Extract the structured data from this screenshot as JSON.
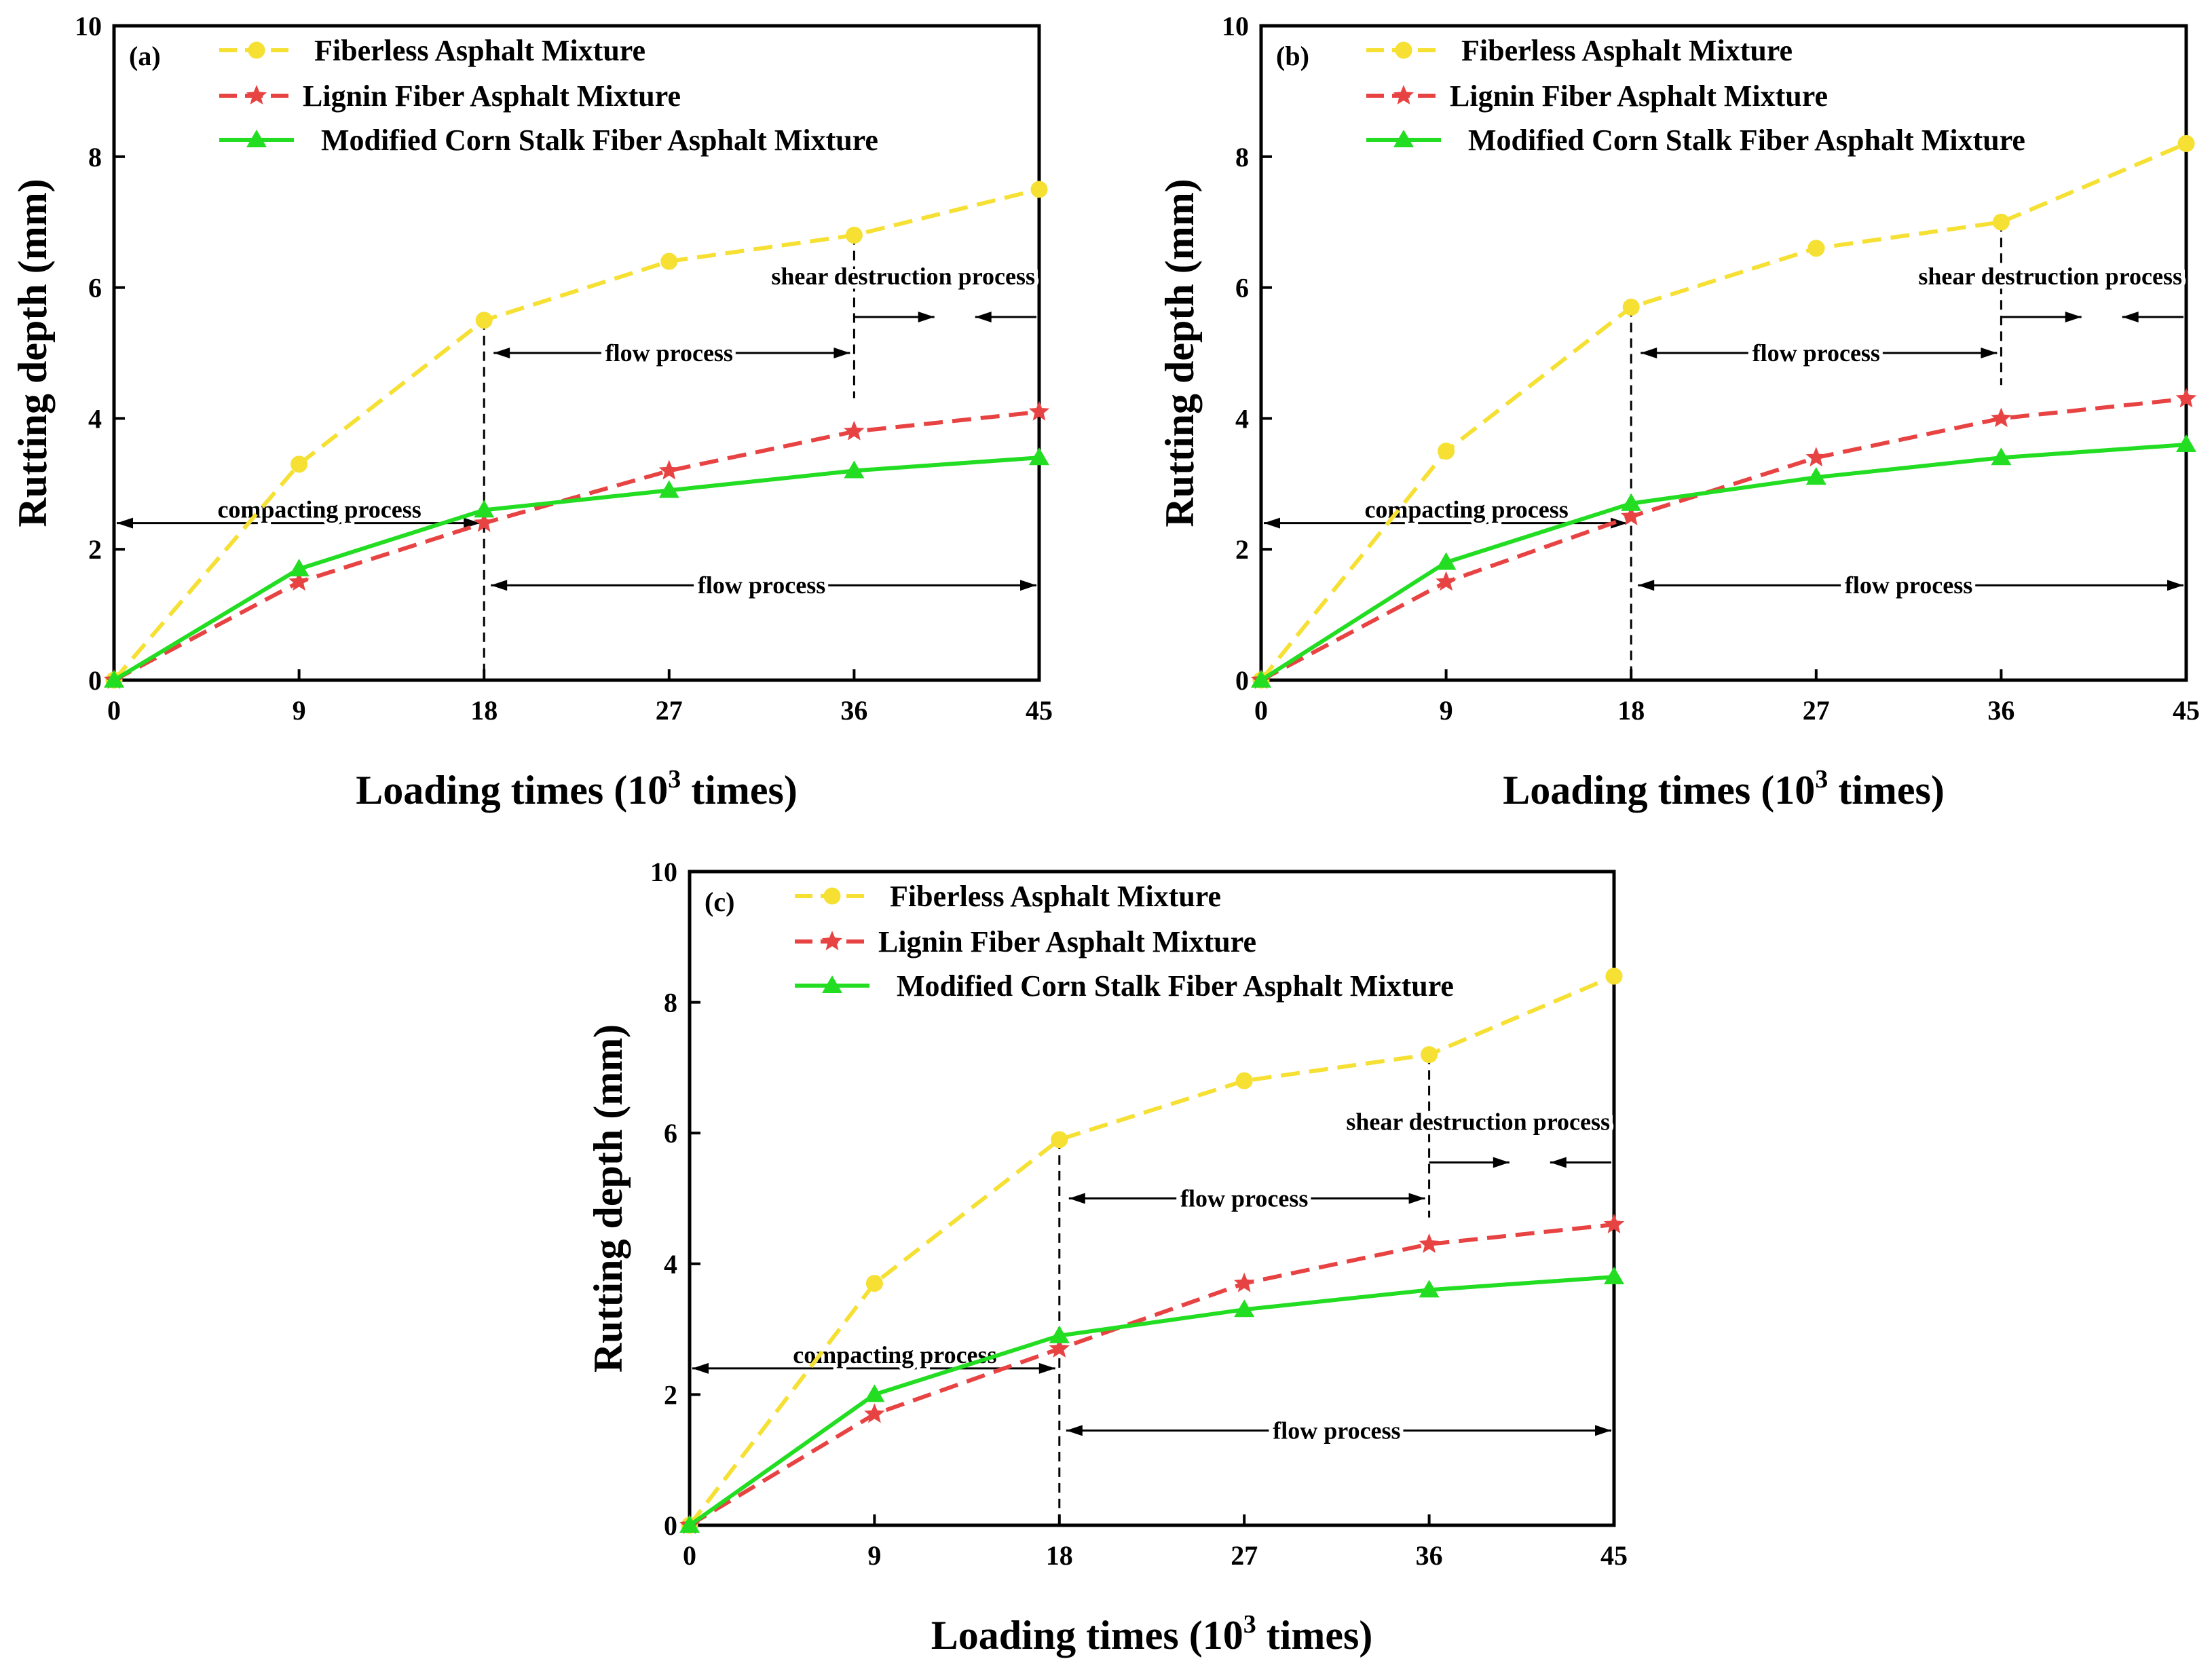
{
  "chart_data": [
    {
      "type": "line",
      "panel_label": "(a)",
      "title": "",
      "xlabel_main": "Loading times (10",
      "xlabel_sup": "3",
      "xlabel_tail": " times)",
      "ylabel": "Rutting depth (mm)",
      "x": [
        0,
        9,
        18,
        27,
        36,
        45
      ],
      "xticks": [
        "0",
        "9",
        "18",
        "27",
        "36",
        "45"
      ],
      "yticks": [
        "0",
        "2",
        "4",
        "6",
        "8",
        "10"
      ],
      "xlim": [
        0,
        45
      ],
      "ylim": [
        0,
        10
      ],
      "legend_position": "top-left",
      "series": [
        {
          "name": "Fiberless Asphalt Mixture",
          "marker": "circle",
          "dash": "dashed",
          "color": "#f5e033",
          "values": [
            0,
            3.3,
            5.5,
            6.4,
            6.8,
            7.5
          ]
        },
        {
          "name": "Lignin Fiber Asphalt Mixture",
          "marker": "star",
          "dash": "dashed",
          "color": "#e84343",
          "values": [
            0,
            1.5,
            2.4,
            3.2,
            3.8,
            4.1
          ]
        },
        {
          "name": "Modified Corn Stalk Fiber Asphalt Mixture",
          "marker": "triangle",
          "dash": "solid",
          "color": "#22dd22",
          "values": [
            0,
            1.7,
            2.6,
            2.9,
            3.2,
            3.4
          ]
        }
      ],
      "annotations": {
        "compacting": "compacting process",
        "flow_upper": "flow process",
        "flow_lower": "flow process",
        "shear": "shear destruction process"
      }
    },
    {
      "type": "line",
      "panel_label": "(b)",
      "title": "",
      "xlabel_main": "Loading times (10",
      "xlabel_sup": "3",
      "xlabel_tail": " times)",
      "ylabel": "Rutting depth (mm)",
      "x": [
        0,
        9,
        18,
        27,
        36,
        45
      ],
      "xticks": [
        "0",
        "9",
        "18",
        "27",
        "36",
        "45"
      ],
      "yticks": [
        "0",
        "2",
        "4",
        "6",
        "8",
        "10"
      ],
      "xlim": [
        0,
        45
      ],
      "ylim": [
        0,
        10
      ],
      "legend_position": "top-left",
      "series": [
        {
          "name": "Fiberless Asphalt Mixture",
          "marker": "circle",
          "dash": "dashed",
          "color": "#f5e033",
          "values": [
            0,
            3.5,
            5.7,
            6.6,
            7.0,
            8.2
          ]
        },
        {
          "name": "Lignin Fiber Asphalt Mixture",
          "marker": "star",
          "dash": "dashed",
          "color": "#e84343",
          "values": [
            0,
            1.5,
            2.5,
            3.4,
            4.0,
            4.3
          ]
        },
        {
          "name": "Modified Corn Stalk Fiber Asphalt Mixture",
          "marker": "triangle",
          "dash": "solid",
          "color": "#22dd22",
          "values": [
            0,
            1.8,
            2.7,
            3.1,
            3.4,
            3.6
          ]
        }
      ],
      "annotations": {
        "compacting": "compacting process",
        "flow_upper": "flow process",
        "flow_lower": "flow process",
        "shear": "shear destruction process"
      }
    },
    {
      "type": "line",
      "panel_label": "(c)",
      "title": "",
      "xlabel_main": "Loading times (10",
      "xlabel_sup": "3",
      "xlabel_tail": " times)",
      "ylabel": "Rutting depth (mm)",
      "x": [
        0,
        9,
        18,
        27,
        36,
        45
      ],
      "xticks": [
        "0",
        "9",
        "18",
        "27",
        "36",
        "45"
      ],
      "yticks": [
        "0",
        "2",
        "4",
        "6",
        "8",
        "10"
      ],
      "xlim": [
        0,
        45
      ],
      "ylim": [
        0,
        10
      ],
      "legend_position": "top-left",
      "series": [
        {
          "name": "Fiberless Asphalt Mixture",
          "marker": "circle",
          "dash": "dashed",
          "color": "#f5e033",
          "values": [
            0,
            3.7,
            5.9,
            6.8,
            7.2,
            8.4
          ]
        },
        {
          "name": "Lignin Fiber Asphalt Mixture",
          "marker": "star",
          "dash": "dashed",
          "color": "#e84343",
          "values": [
            0,
            1.7,
            2.7,
            3.7,
            4.3,
            4.6
          ]
        },
        {
          "name": "Modified Corn Stalk Fiber Asphalt Mixture",
          "marker": "triangle",
          "dash": "solid",
          "color": "#22dd22",
          "values": [
            0,
            2.0,
            2.9,
            3.3,
            3.6,
            3.8
          ]
        }
      ],
      "annotations": {
        "compacting": "compacting process",
        "flow_upper": "flow process",
        "flow_lower": "flow process",
        "shear": "shear destruction process"
      }
    }
  ]
}
